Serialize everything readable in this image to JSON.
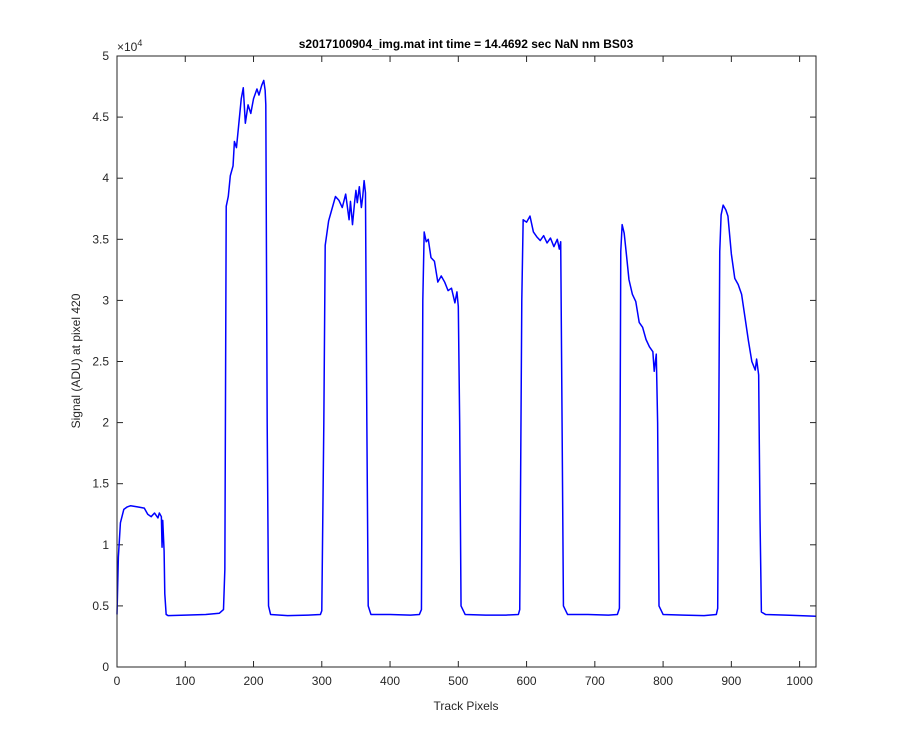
{
  "chart_data": {
    "type": "line",
    "title": "s2017100904_img.mat int time = 14.4692 sec  NaN nm BS03",
    "xlabel": "Track Pixels",
    "ylabel": "Signal (ADU) at pixel 420",
    "xlim": [
      0,
      1024
    ],
    "ylim": [
      0,
      50000
    ],
    "xticks": [
      0,
      100,
      200,
      300,
      400,
      500,
      600,
      700,
      800,
      900,
      1000
    ],
    "yticks": [
      0,
      5000,
      10000,
      15000,
      20000,
      25000,
      30000,
      35000,
      40000,
      45000,
      50000
    ],
    "ytick_labels": [
      "0",
      "0.5",
      "1",
      "1.5",
      "2",
      "2.5",
      "3",
      "3.5",
      "4",
      "4.5",
      "5"
    ],
    "y_exponent": "×10",
    "y_exponent_power": "4",
    "grid": false,
    "line_color": "#0000ff",
    "series": [
      {
        "values": [
          [
            0,
            4300
          ],
          [
            2,
            9000
          ],
          [
            5,
            11800
          ],
          [
            10,
            12900
          ],
          [
            15,
            13100
          ],
          [
            20,
            13200
          ],
          [
            30,
            13100
          ],
          [
            40,
            13000
          ],
          [
            45,
            12500
          ],
          [
            50,
            12300
          ],
          [
            55,
            12600
          ],
          [
            60,
            12200
          ],
          [
            62,
            12600
          ],
          [
            65,
            12300
          ],
          [
            66,
            9800
          ],
          [
            67,
            12000
          ],
          [
            69,
            9500
          ],
          [
            70,
            6000
          ],
          [
            72,
            4300
          ],
          [
            75,
            4200
          ],
          [
            100,
            4250
          ],
          [
            130,
            4300
          ],
          [
            150,
            4400
          ],
          [
            156,
            4700
          ],
          [
            158,
            8000
          ],
          [
            160,
            37700
          ],
          [
            163,
            38500
          ],
          [
            166,
            40200
          ],
          [
            170,
            41000
          ],
          [
            172,
            43000
          ],
          [
            175,
            42500
          ],
          [
            178,
            44200
          ],
          [
            182,
            46500
          ],
          [
            185,
            47400
          ],
          [
            188,
            44500
          ],
          [
            192,
            46000
          ],
          [
            196,
            45300
          ],
          [
            200,
            46500
          ],
          [
            205,
            47300
          ],
          [
            208,
            46800
          ],
          [
            212,
            47600
          ],
          [
            215,
            48000
          ],
          [
            217,
            47200
          ],
          [
            218,
            46000
          ],
          [
            220,
            20000
          ],
          [
            222,
            5000
          ],
          [
            225,
            4300
          ],
          [
            250,
            4200
          ],
          [
            280,
            4250
          ],
          [
            298,
            4300
          ],
          [
            300,
            4600
          ],
          [
            303,
            20000
          ],
          [
            305,
            34500
          ],
          [
            310,
            36500
          ],
          [
            315,
            37500
          ],
          [
            320,
            38500
          ],
          [
            325,
            38200
          ],
          [
            330,
            37600
          ],
          [
            335,
            38700
          ],
          [
            340,
            36600
          ],
          [
            342,
            38100
          ],
          [
            345,
            36200
          ],
          [
            348,
            38000
          ],
          [
            350,
            39000
          ],
          [
            352,
            38000
          ],
          [
            355,
            39300
          ],
          [
            358,
            37600
          ],
          [
            360,
            38500
          ],
          [
            362,
            39800
          ],
          [
            364,
            38800
          ],
          [
            366,
            20000
          ],
          [
            368,
            5000
          ],
          [
            372,
            4300
          ],
          [
            400,
            4300
          ],
          [
            430,
            4250
          ],
          [
            443,
            4300
          ],
          [
            446,
            4700
          ],
          [
            448,
            30000
          ],
          [
            450,
            35600
          ],
          [
            453,
            34800
          ],
          [
            456,
            35000
          ],
          [
            460,
            33500
          ],
          [
            465,
            33200
          ],
          [
            470,
            31500
          ],
          [
            475,
            32000
          ],
          [
            480,
            31500
          ],
          [
            485,
            30800
          ],
          [
            490,
            31000
          ],
          [
            495,
            29800
          ],
          [
            498,
            30700
          ],
          [
            500,
            29500
          ],
          [
            502,
            20000
          ],
          [
            504,
            5000
          ],
          [
            510,
            4300
          ],
          [
            540,
            4250
          ],
          [
            570,
            4250
          ],
          [
            588,
            4300
          ],
          [
            590,
            4700
          ],
          [
            593,
            30000
          ],
          [
            595,
            36600
          ],
          [
            600,
            36400
          ],
          [
            605,
            36900
          ],
          [
            610,
            35600
          ],
          [
            615,
            35200
          ],
          [
            620,
            34900
          ],
          [
            625,
            35300
          ],
          [
            630,
            34700
          ],
          [
            635,
            35100
          ],
          [
            640,
            34400
          ],
          [
            645,
            35000
          ],
          [
            648,
            34200
          ],
          [
            650,
            34800
          ],
          [
            652,
            20000
          ],
          [
            654,
            5000
          ],
          [
            660,
            4300
          ],
          [
            690,
            4300
          ],
          [
            720,
            4250
          ],
          [
            733,
            4300
          ],
          [
            736,
            4800
          ],
          [
            738,
            34000
          ],
          [
            740,
            36200
          ],
          [
            743,
            35500
          ],
          [
            746,
            33900
          ],
          [
            750,
            31700
          ],
          [
            755,
            30500
          ],
          [
            760,
            29900
          ],
          [
            765,
            28200
          ],
          [
            770,
            27800
          ],
          [
            775,
            26800
          ],
          [
            780,
            26200
          ],
          [
            785,
            25800
          ],
          [
            787,
            24200
          ],
          [
            790,
            25600
          ],
          [
            792,
            20000
          ],
          [
            794,
            5000
          ],
          [
            800,
            4300
          ],
          [
            830,
            4250
          ],
          [
            860,
            4200
          ],
          [
            878,
            4300
          ],
          [
            880,
            4800
          ],
          [
            883,
            34000
          ],
          [
            885,
            37000
          ],
          [
            888,
            37800
          ],
          [
            892,
            37400
          ],
          [
            895,
            36900
          ],
          [
            900,
            33800
          ],
          [
            905,
            31800
          ],
          [
            910,
            31300
          ],
          [
            915,
            30500
          ],
          [
            920,
            28600
          ],
          [
            925,
            26700
          ],
          [
            930,
            25000
          ],
          [
            935,
            24300
          ],
          [
            937,
            25200
          ],
          [
            940,
            23900
          ],
          [
            942,
            12000
          ],
          [
            944,
            4500
          ],
          [
            950,
            4300
          ],
          [
            980,
            4250
          ],
          [
            1000,
            4200
          ],
          [
            1024,
            4150
          ]
        ]
      }
    ]
  }
}
